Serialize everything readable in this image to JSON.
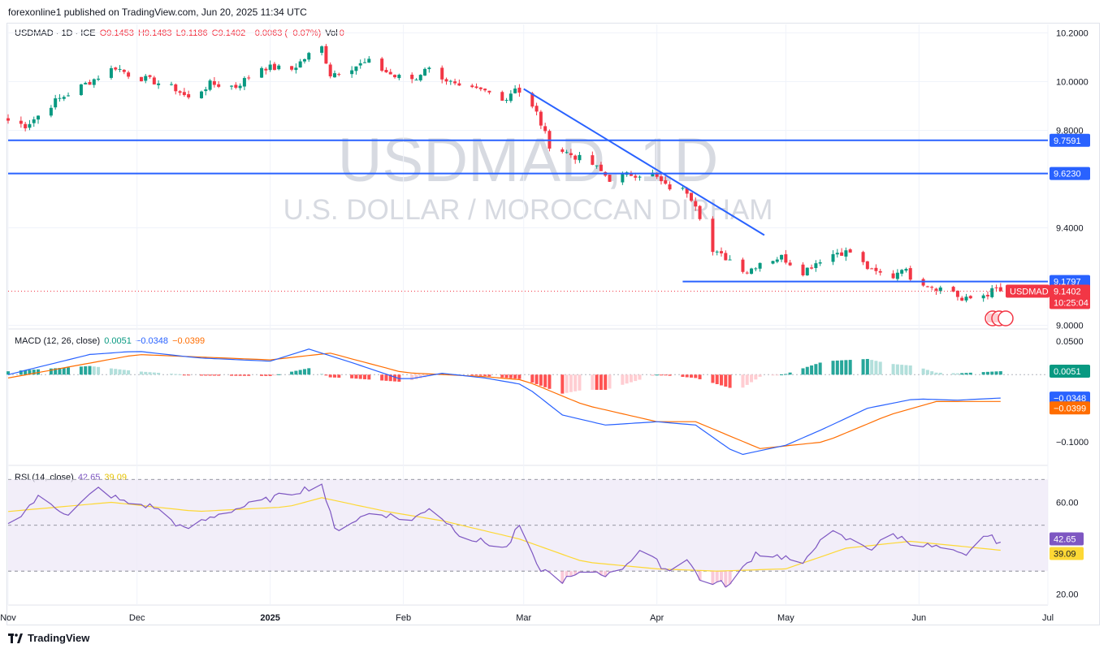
{
  "header": {
    "publish_line": "forexonline1 published on TradingView.com, Jun 20, 2025 11:34 UTC"
  },
  "main_legend": {
    "symbol": "USDMAD · 1D · ICE",
    "open": "O9.1453",
    "high": "H9.1483",
    "low": "L9.1186",
    "close": "C9.1402",
    "change": "−0.0063 (−0.07%)",
    "vol_label": "Vol",
    "vol_value": "0"
  },
  "watermark": {
    "title": "USDMAD, 1D",
    "subtitle": "U.S. DOLLAR / MOROCCAN DIRHAM"
  },
  "macd_legend": {
    "label": "MACD (12, 26, close)",
    "hist": "0.0051",
    "macd": "−0.0348",
    "signal": "−0.0399"
  },
  "rsi_legend": {
    "label": "RSI (14, close)",
    "rsi": "42.65",
    "ma": "39.09"
  },
  "footer": {
    "brand": "TradingView"
  },
  "colors": {
    "up": "#089981",
    "down": "#f23645",
    "drawing": "#2962ff",
    "macd_line": "#2962ff",
    "signal_line": "#ff6d00",
    "rsi_line": "#7e57c2",
    "rsi_ma": "#fdd835",
    "rsi_band": "#ede7f6",
    "grid": "#f0f3fa",
    "axis_text": "#131722"
  },
  "chart_data": [
    {
      "type": "candlestick",
      "symbol": "USDMAD",
      "y_axis_ticks": [
        "10.2000",
        "10.0000",
        "9.8000",
        "9.4000",
        "9.0000"
      ],
      "y_tick_values": [
        10.2,
        10.0,
        9.8,
        9.4,
        9.0
      ],
      "ylim": [
        8.985,
        10.235
      ],
      "x_axis_labels": [
        "Nov",
        "Dec",
        "2025",
        "Feb",
        "Mar",
        "Apr",
        "May",
        "Jun",
        "Jul"
      ],
      "x_tick_dates": [
        "2024-11-01",
        "2024-12-01",
        "2025-01-01",
        "2025-02-01",
        "2025-03-01",
        "2025-04-01",
        "2025-05-01",
        "2025-06-01",
        "2025-07-01"
      ],
      "x_range": [
        "2024-11-01",
        "2025-07-01"
      ],
      "anchor_closes": [
        [
          "2024-11-01",
          9.84
        ],
        [
          "2024-11-05",
          9.82
        ],
        [
          "2024-11-08",
          9.86
        ],
        [
          "2024-11-12",
          9.92
        ],
        [
          "2024-11-18",
          9.98
        ],
        [
          "2024-11-22",
          10.02
        ],
        [
          "2024-11-26",
          10.06
        ],
        [
          "2024-11-29",
          10.03
        ],
        [
          "2024-12-05",
          10.0
        ],
        [
          "2024-12-10",
          9.97
        ],
        [
          "2024-12-13",
          9.93
        ],
        [
          "2024-12-18",
          9.99
        ],
        [
          "2024-12-24",
          9.98
        ],
        [
          "2024-12-30",
          10.06
        ],
        [
          "2025-01-06",
          10.05
        ],
        [
          "2025-01-10",
          10.11
        ],
        [
          "2025-01-13",
          10.14
        ],
        [
          "2025-01-15",
          10.03
        ],
        [
          "2025-01-20",
          10.06
        ],
        [
          "2025-01-24",
          10.08
        ],
        [
          "2025-01-30",
          10.02
        ],
        [
          "2025-02-04",
          10.01
        ],
        [
          "2025-02-06",
          10.06
        ],
        [
          "2025-02-10",
          10.02
        ],
        [
          "2025-02-14",
          9.97
        ],
        [
          "2025-02-20",
          9.96
        ],
        [
          "2025-02-25",
          9.93
        ],
        [
          "2025-02-27",
          9.98
        ],
        [
          "2025-03-04",
          9.87
        ],
        [
          "2025-03-07",
          9.74
        ],
        [
          "2025-03-12",
          9.7
        ],
        [
          "2025-03-17",
          9.66
        ],
        [
          "2025-03-21",
          9.6
        ],
        [
          "2025-03-26",
          9.62
        ],
        [
          "2025-03-31",
          9.62
        ],
        [
          "2025-04-03",
          9.57
        ],
        [
          "2025-04-08",
          9.55
        ],
        [
          "2025-04-10",
          9.5
        ],
        [
          "2025-04-14",
          9.3
        ],
        [
          "2025-04-18",
          9.27
        ],
        [
          "2025-04-22",
          9.22
        ],
        [
          "2025-04-25",
          9.26
        ],
        [
          "2025-04-30",
          9.28
        ],
        [
          "2025-05-05",
          9.22
        ],
        [
          "2025-05-09",
          9.27
        ],
        [
          "2025-05-13",
          9.3
        ],
        [
          "2025-05-16",
          9.3
        ],
        [
          "2025-05-21",
          9.22
        ],
        [
          "2025-05-26",
          9.2
        ],
        [
          "2025-05-28",
          9.24
        ],
        [
          "2025-05-30",
          9.2
        ],
        [
          "2025-06-04",
          9.16
        ],
        [
          "2025-06-09",
          9.14
        ],
        [
          "2025-06-11",
          9.1
        ],
        [
          "2025-06-13",
          9.11
        ],
        [
          "2025-06-17",
          9.13
        ],
        [
          "2025-06-19",
          9.15
        ],
        [
          "2025-06-20",
          9.1402
        ]
      ],
      "trendline": {
        "from": [
          "2025-03-01",
          9.97
        ],
        "to": [
          "2025-04-26",
          9.37
        ]
      },
      "horizontal_levels": [
        {
          "value": 9.7591,
          "label": "9.7591",
          "from": "2024-11-01"
        },
        {
          "value": 9.623,
          "label": "9.6230",
          "from": "2024-11-01"
        },
        {
          "value": 9.1797,
          "label": "9.1797",
          "from": "2025-04-07"
        }
      ],
      "last_price": {
        "symbol": "USDMAD",
        "value": "9.1402",
        "countdown": "10:25:04"
      }
    },
    {
      "type": "macd",
      "y_axis_ticks": [
        "0.0500",
        "−0.1000"
      ],
      "y_tick_values": [
        0.05,
        -0.1
      ],
      "ylim": [
        -0.135,
        0.068
      ],
      "macd_anchors": [
        [
          "2024-11-01",
          0.0
        ],
        [
          "2024-11-20",
          0.03
        ],
        [
          "2024-12-01",
          0.035
        ],
        [
          "2024-12-15",
          0.025
        ],
        [
          "2025-01-01",
          0.02
        ],
        [
          "2025-01-10",
          0.038
        ],
        [
          "2025-01-20",
          0.018
        ],
        [
          "2025-02-01",
          -0.008
        ],
        [
          "2025-02-10",
          0.002
        ],
        [
          "2025-02-20",
          -0.005
        ],
        [
          "2025-03-01",
          -0.015
        ],
        [
          "2025-03-10",
          -0.06
        ],
        [
          "2025-03-20",
          -0.075
        ],
        [
          "2025-04-01",
          -0.07
        ],
        [
          "2025-04-10",
          -0.075
        ],
        [
          "2025-04-20",
          -0.12
        ],
        [
          "2025-05-01",
          -0.105
        ],
        [
          "2025-05-10",
          -0.08
        ],
        [
          "2025-05-20",
          -0.05
        ],
        [
          "2025-05-31",
          -0.036
        ],
        [
          "2025-06-10",
          -0.038
        ],
        [
          "2025-06-20",
          -0.0348
        ]
      ],
      "signal_anchors": [
        [
          "2024-11-01",
          -0.005
        ],
        [
          "2024-12-01",
          0.03
        ],
        [
          "2025-01-01",
          0.022
        ],
        [
          "2025-01-15",
          0.032
        ],
        [
          "2025-02-01",
          0.003
        ],
        [
          "2025-02-20",
          -0.003
        ],
        [
          "2025-03-01",
          -0.008
        ],
        [
          "2025-03-15",
          -0.045
        ],
        [
          "2025-04-01",
          -0.07
        ],
        [
          "2025-04-10",
          -0.07
        ],
        [
          "2025-04-25",
          -0.11
        ],
        [
          "2025-05-10",
          -0.1
        ],
        [
          "2025-05-25",
          -0.06
        ],
        [
          "2025-06-05",
          -0.04
        ],
        [
          "2025-06-20",
          -0.0399
        ]
      ]
    },
    {
      "type": "rsi",
      "y_axis_ticks": [
        "60.00",
        "20.00"
      ],
      "y_tick_values": [
        60,
        20
      ],
      "ylim": [
        15.2,
        76.1
      ],
      "bands": [
        70,
        50,
        30
      ],
      "rsi_anchors": [
        [
          "2024-11-01",
          50
        ],
        [
          "2024-11-08",
          62
        ],
        [
          "2024-11-15",
          55
        ],
        [
          "2024-11-22",
          66
        ],
        [
          "2024-11-28",
          60
        ],
        [
          "2024-12-05",
          58
        ],
        [
          "2024-12-12",
          48
        ],
        [
          "2024-12-20",
          55
        ],
        [
          "2025-01-02",
          62
        ],
        [
          "2025-01-13",
          68
        ],
        [
          "2025-01-16",
          48
        ],
        [
          "2025-01-25",
          56
        ],
        [
          "2025-02-03",
          52
        ],
        [
          "2025-02-07",
          58
        ],
        [
          "2025-02-15",
          45
        ],
        [
          "2025-02-25",
          40
        ],
        [
          "2025-02-28",
          50
        ],
        [
          "2025-03-04",
          32
        ],
        [
          "2025-03-10",
          26
        ],
        [
          "2025-03-17",
          30
        ],
        [
          "2025-03-22",
          28
        ],
        [
          "2025-03-28",
          39
        ],
        [
          "2025-04-04",
          30
        ],
        [
          "2025-04-08",
          36
        ],
        [
          "2025-04-11",
          26
        ],
        [
          "2025-04-18",
          24
        ],
        [
          "2025-04-24",
          38
        ],
        [
          "2025-05-01",
          36
        ],
        [
          "2025-05-05",
          32
        ],
        [
          "2025-05-10",
          48
        ],
        [
          "2025-05-15",
          44
        ],
        [
          "2025-05-21",
          40
        ],
        [
          "2025-05-26",
          46
        ],
        [
          "2025-05-31",
          42
        ],
        [
          "2025-06-06",
          40
        ],
        [
          "2025-06-12",
          36
        ],
        [
          "2025-06-16",
          46
        ],
        [
          "2025-06-20",
          42.65
        ]
      ],
      "rsi_ma_anchors": [
        [
          "2024-11-01",
          56
        ],
        [
          "2024-11-25",
          60
        ],
        [
          "2024-12-15",
          56
        ],
        [
          "2025-01-05",
          58
        ],
        [
          "2025-01-13",
          62
        ],
        [
          "2025-01-28",
          56
        ],
        [
          "2025-02-10",
          52
        ],
        [
          "2025-02-28",
          44
        ],
        [
          "2025-03-15",
          34
        ],
        [
          "2025-04-01",
          31
        ],
        [
          "2025-04-15",
          30
        ],
        [
          "2025-05-01",
          31
        ],
        [
          "2025-05-15",
          40
        ],
        [
          "2025-05-30",
          43
        ],
        [
          "2025-06-10",
          41
        ],
        [
          "2025-06-20",
          39.09
        ]
      ]
    }
  ]
}
